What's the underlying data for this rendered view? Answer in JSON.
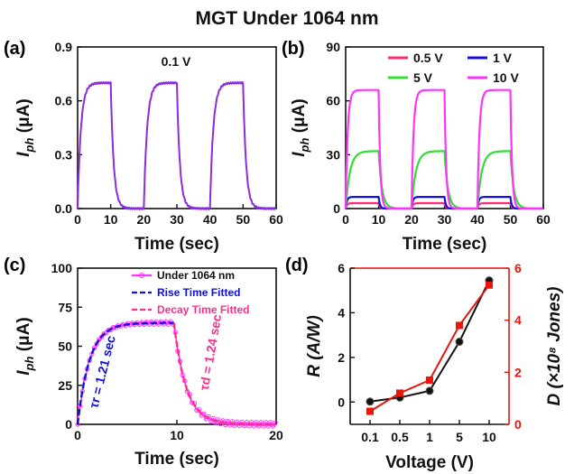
{
  "figure_title": "MGT Under 1064 nm",
  "colors": {
    "violet": "#8a2be2",
    "pink": "#ff2d78",
    "blue": "#1010e0",
    "green": "#33dd33",
    "magenta": "#ff33ff",
    "decay": "#ff2d8a",
    "red": "#e8150a",
    "black": "#111111"
  },
  "chart_data": [
    {
      "panel": "(a)",
      "type": "line",
      "annotation": "0.1 V",
      "xlabel": "Time (sec)",
      "ylabel": "I_ph (μA)",
      "xlim": [
        0,
        60
      ],
      "ylim": [
        0,
        0.9
      ],
      "xticks": [
        "0",
        "10",
        "20",
        "30",
        "40",
        "50",
        "60"
      ],
      "yticks": [
        "0.0",
        "0.3",
        "0.6",
        "0.9"
      ],
      "on_intervals": [
        [
          0,
          10
        ],
        [
          20,
          30
        ],
        [
          40,
          50
        ]
      ],
      "series": [
        {
          "name": "0.1 V",
          "plateau": 0.7,
          "color": "violet"
        }
      ]
    },
    {
      "panel": "(b)",
      "type": "line",
      "xlabel": "Time (sec)",
      "ylabel": "I_ph (μA)",
      "xlim": [
        0,
        60
      ],
      "ylim": [
        0,
        90
      ],
      "xticks": [
        "0",
        "10",
        "20",
        "30",
        "40",
        "50",
        "60"
      ],
      "yticks": [
        "0",
        "30",
        "60",
        "90"
      ],
      "legend": [
        "0.5 V",
        "1 V",
        "5 V",
        "10 V"
      ],
      "on_intervals": [
        [
          0,
          10
        ],
        [
          20,
          30
        ],
        [
          40,
          50
        ]
      ],
      "series": [
        {
          "name": "0.5 V",
          "plateau": 3,
          "color": "pink"
        },
        {
          "name": "1 V",
          "plateau": 6.5,
          "color": "blue"
        },
        {
          "name": "5 V",
          "plateau": 32,
          "color": "green"
        },
        {
          "name": "10 V",
          "plateau": 66,
          "color": "magenta"
        }
      ]
    },
    {
      "panel": "(c)",
      "type": "line",
      "xlabel": "Time (sec)",
      "ylabel": "I_ph (μA)",
      "xlim": [
        0,
        20
      ],
      "ylim": [
        0,
        100
      ],
      "xticks": [
        "0",
        "10",
        "20"
      ],
      "yticks": [
        "0",
        "25",
        "50",
        "75",
        "100"
      ],
      "legend": [
        "Under 1064 nm",
        "Rise Time Fitted",
        "Decay Time Fitted"
      ],
      "plateau": 65,
      "light_off_at": 9.7,
      "rise_tau_label": "τr = 1.21 sec",
      "decay_tau_label": "τd = 1.24 sec"
    },
    {
      "panel": "(d)",
      "type": "line",
      "xlabel": "Voltage (V)",
      "ylabel_left": "R (A/W)",
      "ylabel_right": "D (×10⁸ Jones)",
      "categories": [
        "0.1",
        "0.5",
        "1",
        "5",
        "10"
      ],
      "ylim_left": [
        -1,
        6
      ],
      "ylim_right": [
        0,
        6
      ],
      "yticks_left": [
        "0",
        "2",
        "4",
        "6"
      ],
      "yticks_right": [
        "0",
        "2",
        "4",
        "6"
      ],
      "series": [
        {
          "name": "R",
          "axis": "left",
          "values": [
            0.02,
            0.2,
            0.5,
            2.7,
            5.45
          ],
          "color": "black"
        },
        {
          "name": "D",
          "axis": "right",
          "values": [
            0.5,
            1.2,
            1.7,
            3.8,
            5.35
          ],
          "color": "red"
        }
      ]
    }
  ]
}
